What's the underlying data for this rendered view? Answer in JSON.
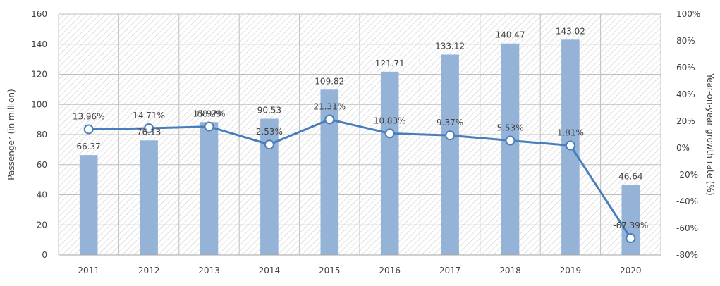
{
  "chart_data": {
    "type": "bar+line",
    "categories": [
      "2011",
      "2012",
      "2013",
      "2014",
      "2015",
      "2016",
      "2017",
      "2018",
      "2019",
      "2020"
    ],
    "series": [
      {
        "name": "Passenger",
        "type": "bar",
        "axis": "left",
        "values": [
          66.37,
          76.13,
          88.29,
          90.53,
          109.82,
          121.71,
          133.12,
          140.47,
          143.02,
          46.64
        ],
        "labels": [
          "66.37",
          "76.13",
          "88.29",
          "90.53",
          "109.82",
          "121.71",
          "133.12",
          "140.47",
          "143.02",
          "46.64"
        ],
        "color": "#95b3d7"
      },
      {
        "name": "Year-on-year growth rate",
        "type": "line",
        "axis": "right",
        "values": [
          13.96,
          14.71,
          15.97,
          2.53,
          21.31,
          10.83,
          9.37,
          5.53,
          1.81,
          -67.39
        ],
        "labels": [
          "13.96%",
          "14.71%",
          "15.97%",
          "2.53%",
          "21.31%",
          "10.83%",
          "9.37%",
          "5.53%",
          "1.81%",
          "-67.39%"
        ],
        "color": "#4a7ebb"
      }
    ],
    "ylabel_left": "Passenger (in million)",
    "ylabel_right": "Year-on-year growth rate (%)",
    "ylim_left": [
      0,
      160
    ],
    "yticks_left": [
      "0",
      "20",
      "40",
      "60",
      "80",
      "100",
      "120",
      "140",
      "160"
    ],
    "ylim_right": [
      -80,
      100
    ],
    "yticks_right": [
      "-80%",
      "-60%",
      "-40%",
      "-20%",
      "0%",
      "20%",
      "40%",
      "60%",
      "80%",
      "100%"
    ],
    "grid": true,
    "background": "hatched"
  }
}
